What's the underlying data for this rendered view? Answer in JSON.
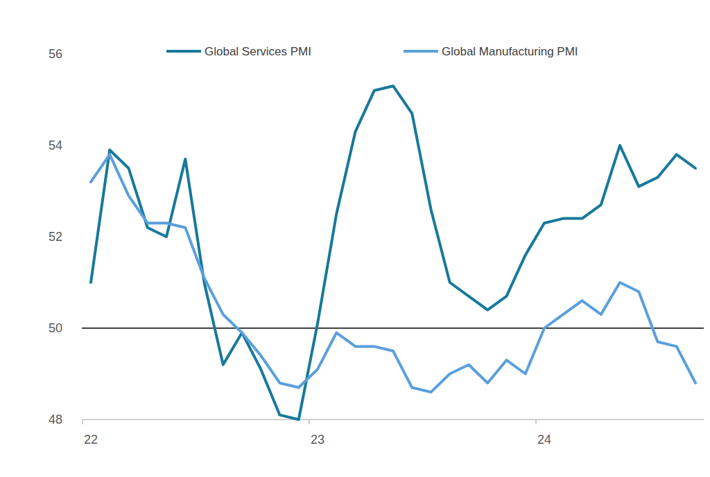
{
  "chart_data": {
    "type": "line",
    "categories": [
      "22",
      null,
      null,
      null,
      null,
      null,
      null,
      null,
      null,
      null,
      null,
      null,
      "23",
      null,
      null,
      null,
      null,
      null,
      null,
      null,
      null,
      null,
      null,
      null,
      "24",
      null,
      null,
      null,
      null,
      null,
      null,
      null,
      null
    ],
    "series": [
      {
        "name": "Global Services PMI",
        "color": "#17799b",
        "values": [
          51.0,
          53.9,
          53.5,
          52.2,
          52.0,
          53.7,
          51.0,
          49.2,
          49.9,
          49.1,
          48.1,
          48.0,
          50.1,
          52.5,
          54.3,
          55.2,
          55.3,
          54.7,
          52.6,
          51.0,
          50.7,
          50.4,
          50.7,
          51.6,
          52.3,
          52.4,
          52.4,
          52.7,
          54.0,
          53.1,
          53.3,
          53.8,
          53.5
        ]
      },
      {
        "name": "Global Manufacturing PMI",
        "color": "#5b9fdc",
        "values": [
          53.2,
          53.8,
          52.9,
          52.3,
          52.3,
          52.2,
          51.1,
          50.3,
          49.9,
          49.4,
          48.8,
          48.7,
          49.1,
          49.9,
          49.6,
          49.6,
          49.5,
          48.7,
          48.6,
          49.0,
          49.2,
          48.8,
          49.3,
          49.0,
          50.0,
          50.3,
          50.6,
          50.3,
          51.0,
          50.8,
          49.7,
          49.6,
          48.8
        ]
      }
    ],
    "ylim": [
      48,
      56
    ],
    "yticks": [
      48,
      50,
      52,
      54,
      56
    ],
    "reference_line": 50,
    "grid": false,
    "legend": "top"
  }
}
